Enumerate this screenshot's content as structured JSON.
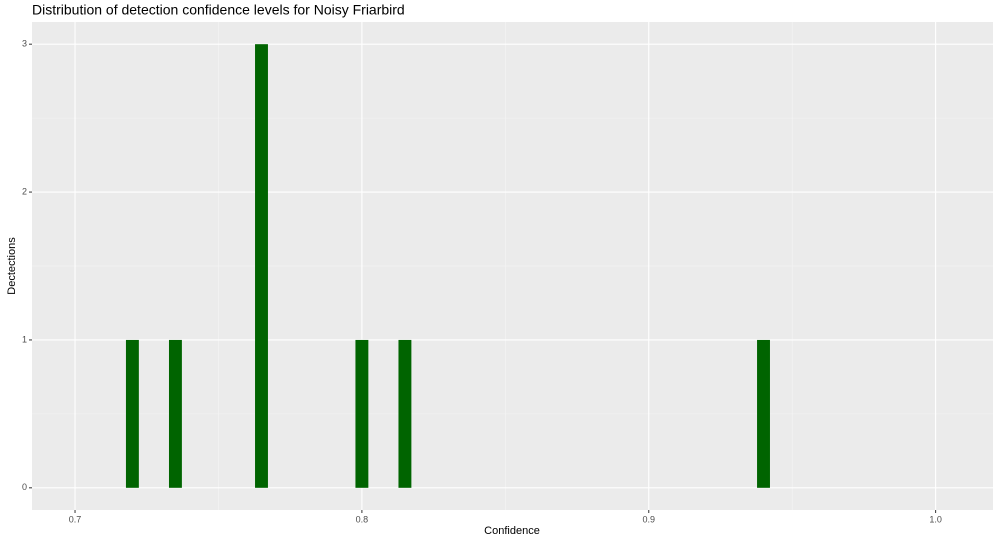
{
  "chart_data": {
    "type": "bar",
    "title": "Distribution of detection confidence levels for Noisy Friarbird",
    "x_label": "Confidence",
    "y_label": "Dectections",
    "x": [
      0.72,
      0.735,
      0.765,
      0.8,
      0.815,
      0.94
    ],
    "values": [
      1,
      1,
      3,
      1,
      1,
      1
    ],
    "bar_width": 0.0045,
    "color": "#006400",
    "xlim": [
      0.685,
      1.02
    ],
    "xticks": [
      0.7,
      0.8,
      0.9,
      {
        "value": 1.0,
        "label": "1.0"
      }
    ],
    "ylim": [
      -0.15,
      3.15
    ],
    "yticks": [
      0,
      1,
      2,
      3
    ],
    "grid": true,
    "minor_grid": true
  }
}
